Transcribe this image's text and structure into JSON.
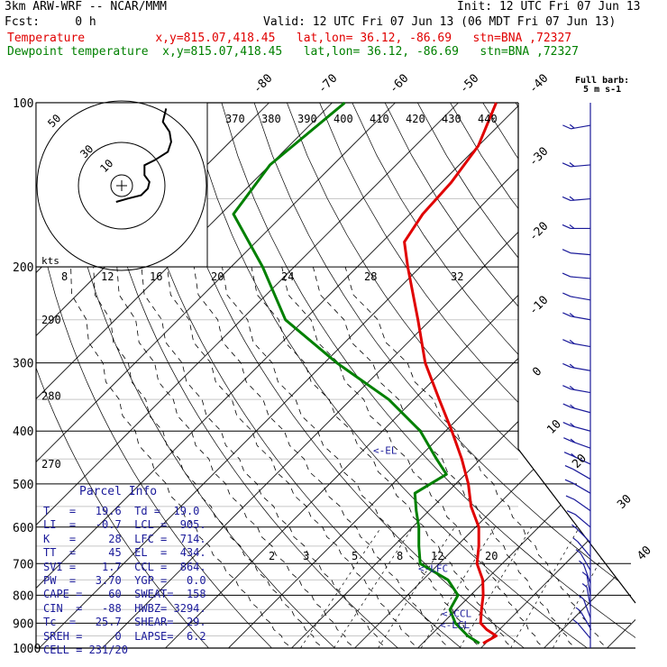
{
  "header": {
    "model": "3km ARW-WRF -- NCAR/MMM",
    "init": "Init: 12 UTC Fri 07 Jun 13",
    "fcst": "Fcst:     0 h",
    "valid": "Valid: 12 UTC Fri 07 Jun 13 (06 MDT Fri 07 Jun 13)",
    "temp_line": "Temperature          x,y=815.07,418.45   lat,lon= 36.12, -86.69   stn=BNA ,72327",
    "dew_line": "Dewpoint temperature  x,y=815.07,418.45   lat,lon= 36.12, -86.69   stn=BNA ,72327"
  },
  "colors": {
    "temperature": "#e00000",
    "dewpoint": "#008000",
    "parcel_text": "#1a1a9a",
    "barbs": "#1a1a9a"
  },
  "parcel_info": {
    "title": "Parcel Info",
    "rows": [
      "T   =   19.6  Td =  19.0",
      "LI  =   -0.7  LCL =  905.",
      "K   =     28  LFC =  714.",
      "TT  =     45  EL  =  434.",
      "SVI =    1.7  CCL =  864.",
      "PW  =   3.70  YGP =   0.0",
      "CAPE =    60  SWEAT=  158",
      "CIN  =   -88  HWBZ= 3294.",
      "Tc  =   25.7  SHEAR=  29.",
      "SREH =     0  LAPSE=  6.2",
      "CELL = 231/20"
    ]
  },
  "barb_title": [
    "Full barb:",
    "5 m s-1"
  ],
  "chart_data": {
    "type": "skew-t",
    "y_axis": {
      "scale": "log",
      "unit": "hPa",
      "pressure_ticks": [
        100,
        200,
        300,
        400,
        500,
        600,
        700,
        800,
        900,
        1000
      ]
    },
    "temperature_labels": [
      {
        "value": -80,
        "label": "-80"
      },
      {
        "value": -70,
        "label": "-70"
      },
      {
        "value": -60,
        "label": "-60"
      },
      {
        "value": -50,
        "label": "-50"
      },
      {
        "value": -40,
        "label": "-40"
      },
      {
        "value": -30,
        "label": "-30"
      },
      {
        "value": -20,
        "label": "-20"
      },
      {
        "value": -10,
        "label": "-10"
      },
      {
        "value": 0,
        "label": "0"
      },
      {
        "value": 10,
        "label": "10"
      },
      {
        "value": 20,
        "label": "20"
      },
      {
        "value": 30,
        "label": "30"
      },
      {
        "value": 40,
        "label": "40"
      }
    ],
    "theta_labels_top": [
      "370",
      "380",
      "390",
      "400",
      "410",
      "420",
      "430",
      "440"
    ],
    "theta_labels_left": [
      {
        "p": 250,
        "label": "290"
      },
      {
        "p": 345,
        "label": "280"
      },
      {
        "p": 460,
        "label": "270"
      }
    ],
    "mixing_ratio_labels_top": [
      "8",
      "12",
      "16",
      "20",
      "24",
      "28",
      "32"
    ],
    "mixing_ratio_labels_low": [
      "2",
      "3",
      "5",
      "8",
      "12",
      "20"
    ],
    "hodograph": {
      "unit_label": "kts",
      "ring_labels": [
        "50",
        "30",
        "10"
      ]
    },
    "levels": [
      {
        "label": "<-EL",
        "p": 434
      },
      {
        "label": "<-LFC",
        "p": 714
      },
      {
        "label": "<-CCL",
        "p": 864
      },
      {
        "label": "<-LCL",
        "p": 905
      }
    ],
    "series": [
      {
        "name": "Temperature",
        "points": [
          {
            "p": 100,
            "t": -64
          },
          {
            "p": 120,
            "t": -60
          },
          {
            "p": 140,
            "t": -58.5
          },
          {
            "p": 160,
            "t": -58
          },
          {
            "p": 180,
            "t": -56.5
          },
          {
            "p": 200,
            "t": -52
          },
          {
            "p": 250,
            "t": -42
          },
          {
            "p": 300,
            "t": -34
          },
          {
            "p": 350,
            "t": -26
          },
          {
            "p": 400,
            "t": -19
          },
          {
            "p": 450,
            "t": -13
          },
          {
            "p": 500,
            "t": -8
          },
          {
            "p": 550,
            "t": -4
          },
          {
            "p": 600,
            "t": 0.5
          },
          {
            "p": 650,
            "t": 3.5
          },
          {
            "p": 700,
            "t": 6
          },
          {
            "p": 750,
            "t": 9.5
          },
          {
            "p": 800,
            "t": 12
          },
          {
            "p": 850,
            "t": 14
          },
          {
            "p": 900,
            "t": 16
          },
          {
            "p": 925,
            "t": 18
          },
          {
            "p": 950,
            "t": 20.5
          },
          {
            "p": 980,
            "t": 19.6
          }
        ]
      },
      {
        "name": "Dewpoint temperature",
        "points": [
          {
            "p": 100,
            "t": -88
          },
          {
            "p": 130,
            "t": -90
          },
          {
            "p": 160,
            "t": -88
          },
          {
            "p": 200,
            "t": -75
          },
          {
            "p": 250,
            "t": -63
          },
          {
            "p": 300,
            "t": -48
          },
          {
            "p": 350,
            "t": -34
          },
          {
            "p": 400,
            "t": -24
          },
          {
            "p": 450,
            "t": -17
          },
          {
            "p": 480,
            "t": -13
          },
          {
            "p": 520,
            "t": -15
          },
          {
            "p": 560,
            "t": -12
          },
          {
            "p": 600,
            "t": -9
          },
          {
            "p": 650,
            "t": -6
          },
          {
            "p": 700,
            "t": -3
          },
          {
            "p": 750,
            "t": 4
          },
          {
            "p": 800,
            "t": 8
          },
          {
            "p": 850,
            "t": 9
          },
          {
            "p": 900,
            "t": 12
          },
          {
            "p": 950,
            "t": 16
          },
          {
            "p": 980,
            "t": 19
          }
        ]
      }
    ],
    "hodograph_trace": [
      {
        "u": 1,
        "v": 0
      },
      {
        "u": 8,
        "v": 2
      },
      {
        "u": 16,
        "v": 4
      },
      {
        "u": 20,
        "v": 8
      },
      {
        "u": 21,
        "v": 12
      },
      {
        "u": 18,
        "v": 16
      },
      {
        "u": 18,
        "v": 22
      },
      {
        "u": 24,
        "v": 25
      },
      {
        "u": 32,
        "v": 30
      },
      {
        "u": 34,
        "v": 36
      },
      {
        "u": 33,
        "v": 42
      },
      {
        "u": 29,
        "v": 48
      },
      {
        "u": 31,
        "v": 56
      }
    ],
    "wind_barbs": [
      {
        "p": 110,
        "dir": 260,
        "spd": 15
      },
      {
        "p": 130,
        "dir": 265,
        "spd": 15
      },
      {
        "p": 150,
        "dir": 265,
        "spd": 15
      },
      {
        "p": 170,
        "dir": 270,
        "spd": 15
      },
      {
        "p": 190,
        "dir": 275,
        "spd": 10
      },
      {
        "p": 210,
        "dir": 275,
        "spd": 10
      },
      {
        "p": 230,
        "dir": 280,
        "spd": 10
      },
      {
        "p": 250,
        "dir": 280,
        "spd": 15
      },
      {
        "p": 280,
        "dir": 280,
        "spd": 15
      },
      {
        "p": 310,
        "dir": 280,
        "spd": 15
      },
      {
        "p": 340,
        "dir": 280,
        "spd": 15
      },
      {
        "p": 370,
        "dir": 285,
        "spd": 15
      },
      {
        "p": 400,
        "dir": 285,
        "spd": 15
      },
      {
        "p": 430,
        "dir": 290,
        "spd": 15
      },
      {
        "p": 460,
        "dir": 295,
        "spd": 15
      },
      {
        "p": 490,
        "dir": 300,
        "spd": 10
      },
      {
        "p": 520,
        "dir": 300,
        "spd": 10
      },
      {
        "p": 560,
        "dir": 305,
        "spd": 10
      },
      {
        "p": 600,
        "dir": 310,
        "spd": 10
      },
      {
        "p": 640,
        "dir": 315,
        "spd": 5
      },
      {
        "p": 680,
        "dir": 320,
        "spd": 5
      },
      {
        "p": 720,
        "dir": 330,
        "spd": 5
      },
      {
        "p": 760,
        "dir": 340,
        "spd": 5
      },
      {
        "p": 800,
        "dir": 350,
        "spd": 5
      },
      {
        "p": 840,
        "dir": 350,
        "spd": 5
      },
      {
        "p": 880,
        "dir": 340,
        "spd": 5
      },
      {
        "p": 920,
        "dir": 330,
        "spd": 5
      },
      {
        "p": 960,
        "dir": 320,
        "spd": 5
      }
    ]
  }
}
